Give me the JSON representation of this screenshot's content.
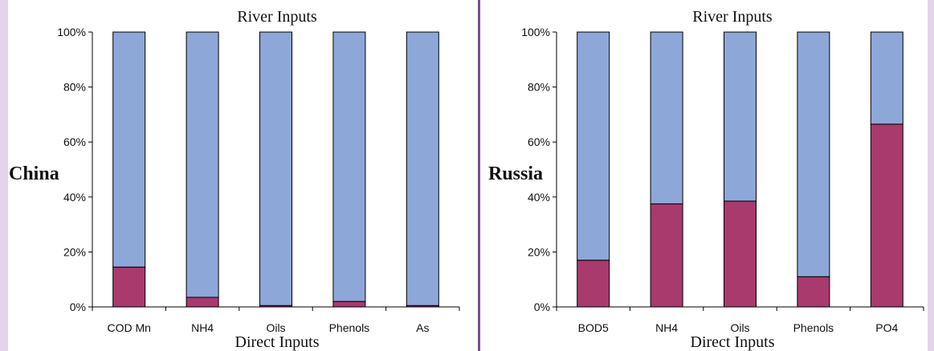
{
  "colors": {
    "direct": "#a83a6e",
    "river": "#8ea7d9",
    "frame": "#e3d4ea",
    "divider": "#7a4e8c"
  },
  "chart_data": [
    {
      "type": "bar",
      "stacked": true,
      "percent": true,
      "title": "River Inputs",
      "xlabel": "Direct Inputs",
      "side_label": "China",
      "categories": [
        "COD Mn",
        "NH4",
        "Oils",
        "Phenols",
        "As"
      ],
      "series": [
        {
          "name": "Direct Inputs",
          "values": [
            14.5,
            3.5,
            0.5,
            2,
            0.5
          ]
        },
        {
          "name": "River Inputs",
          "values": [
            85.5,
            96.5,
            99.5,
            98,
            99.5
          ]
        }
      ],
      "ylim": [
        0,
        100
      ],
      "yticks": [
        "0%",
        "20%",
        "40%",
        "60%",
        "80%",
        "100%"
      ],
      "grid": false,
      "legend": "none"
    },
    {
      "type": "bar",
      "stacked": true,
      "percent": true,
      "title": "River Inputs",
      "xlabel": "Direct Inputs",
      "side_label": "Russia",
      "categories": [
        "BOD5",
        "NH4",
        "Oils",
        "Phenols",
        "PO4"
      ],
      "series": [
        {
          "name": "Direct Inputs",
          "values": [
            17,
            37.5,
            38.5,
            11,
            66.5
          ]
        },
        {
          "name": "River Inputs",
          "values": [
            83,
            62.5,
            61.5,
            89,
            33.5
          ]
        }
      ],
      "ylim": [
        0,
        100
      ],
      "yticks": [
        "0%",
        "20%",
        "40%",
        "60%",
        "80%",
        "100%"
      ],
      "grid": false,
      "legend": "none"
    }
  ]
}
